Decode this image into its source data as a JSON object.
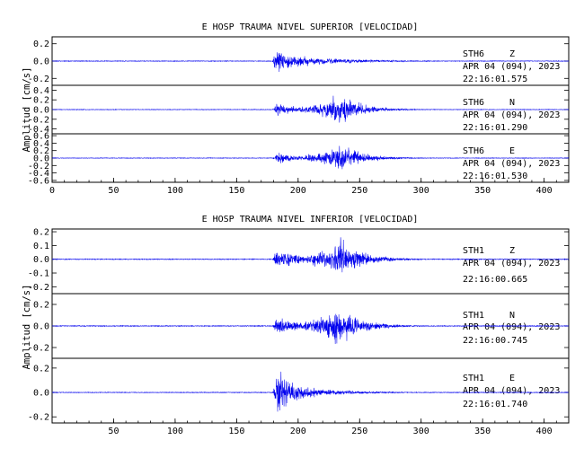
{
  "colors": {
    "trace": "#0000ee",
    "axes": "#000000",
    "background": "#ffffff"
  },
  "chart_data": [
    {
      "type": "line",
      "title": "E HOSP TRAUMA NIVEL SUPERIOR [VELOCIDAD]",
      "ylabel": "Amplitud [cm/s]",
      "xlabel": "",
      "xlim": [
        0,
        420
      ],
      "xticks": [
        0,
        50,
        100,
        150,
        200,
        250,
        300,
        350,
        400
      ],
      "grid": false,
      "panels": [
        {
          "station": "STH6",
          "component": "Z",
          "date": "APR 04 (094), 2023",
          "time": "22:16:01.575",
          "ylim": [
            -0.28,
            0.28
          ],
          "yticks": [
            "0.2",
            "0.0",
            "-0.2"
          ],
          "series": [
            {
              "envelope": {
                "noise": 0.004,
                "onset": 179,
                "peak": 0.24,
                "peak_time": 181,
                "decay": 0.024,
                "end": 420
              }
            }
          ]
        },
        {
          "station": "STH6",
          "component": "N",
          "date": "APR 04 (094), 2023",
          "time": "22:16:01.290",
          "ylim": [
            -0.5,
            0.5
          ],
          "yticks": [
            "0.4",
            "0.2",
            "0.0",
            "-0.2",
            "-0.4"
          ],
          "series": [
            {
              "envelope": {
                "noise": 0.006,
                "onset": 179,
                "peak": 0.42,
                "peak_time": 234,
                "decay": 0.055,
                "end": 420
              }
            }
          ]
        },
        {
          "station": "STH6",
          "component": "E",
          "date": "APR 04 (094), 2023",
          "time": "22:16:01.530",
          "ylim": [
            -0.65,
            0.65
          ],
          "yticks": [
            "0.6",
            "0.4",
            "0.2",
            "0.0",
            "-0.2",
            "-0.4",
            "-0.6"
          ],
          "series": [
            {
              "envelope": {
                "noise": 0.008,
                "onset": 179,
                "peak": 0.5,
                "peak_time": 234,
                "decay": 0.06,
                "end": 420
              }
            }
          ]
        }
      ]
    },
    {
      "type": "line",
      "title": "E HOSP TRAUMA NIVEL INFERIOR [VELOCIDAD]",
      "ylabel": "Amplitud [cm/s]",
      "xlabel": "",
      "xlim": [
        0,
        420
      ],
      "xticks": [
        50,
        100,
        150,
        200,
        250,
        300,
        350,
        400
      ],
      "grid": false,
      "panels": [
        {
          "station": "STH1",
          "component": "Z",
          "date": "APR 04 (094), 2023",
          "time": "22:16:00.665",
          "ylim": [
            -0.25,
            0.22
          ],
          "yticks": [
            "0.2",
            "0.1",
            "0.0",
            "-0.1",
            "-0.2"
          ],
          "series": [
            {
              "envelope": {
                "noise": 0.003,
                "onset": 179,
                "peak": 0.2,
                "peak_time": 235,
                "decay": 0.04,
                "end": 420
              }
            }
          ]
        },
        {
          "station": "STH1",
          "component": "N",
          "date": "APR 04 (094), 2023",
          "time": "22:16:00.745",
          "ylim": [
            -0.3,
            0.3
          ],
          "yticks": [
            "0.2",
            "0.0",
            "-0.2"
          ],
          "series": [
            {
              "envelope": {
                "noise": 0.004,
                "onset": 179,
                "peak": 0.25,
                "peak_time": 232,
                "decay": 0.045,
                "end": 420
              }
            }
          ]
        },
        {
          "station": "STH1",
          "component": "E",
          "date": "APR 04 (094), 2023",
          "time": "22:16:01.740",
          "ylim": [
            -0.25,
            0.28
          ],
          "yticks": [
            "0.2",
            "0.0",
            "-0.2"
          ],
          "series": [
            {
              "envelope": {
                "noise": 0.003,
                "onset": 179,
                "peak": 0.24,
                "peak_time": 183,
                "decay": 0.03,
                "end": 420
              }
            }
          ]
        }
      ]
    }
  ]
}
